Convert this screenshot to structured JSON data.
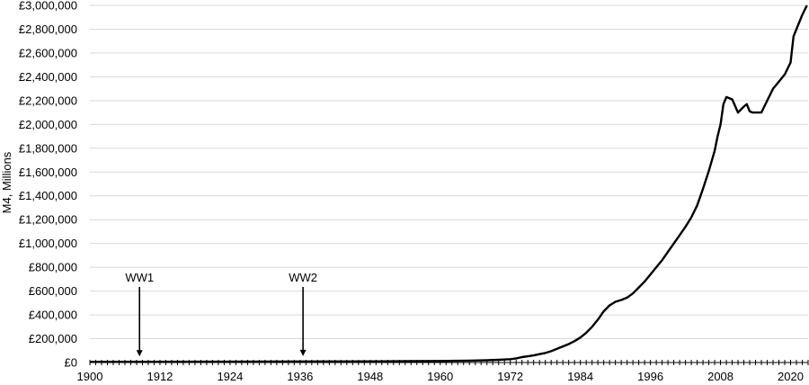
{
  "chart_data": {
    "type": "line",
    "ylabel": "M4, Millions",
    "xlim": [
      1900,
      2023
    ],
    "ylim": [
      0,
      3000000
    ],
    "x_ticks": [
      "1900",
      "1912",
      "1924",
      "1936",
      "1948",
      "1960",
      "1972",
      "1984",
      "1996",
      "2008",
      "2020"
    ],
    "y_ticks": [
      "£0",
      "£200,000",
      "£400,000",
      "£600,000",
      "£800,000",
      "£1,000,000",
      "£1,200,000",
      "£1,400,000",
      "£1,600,000",
      "£1,800,000",
      "£2,000,000",
      "£2,200,000",
      "£2,400,000",
      "£2,600,000",
      "£2,800,000",
      "£3,000,000"
    ],
    "grid": true,
    "series": [
      {
        "x": [
          1900,
          1910,
          1920,
          1930,
          1940,
          1950,
          1955,
          1960,
          1965,
          1968,
          1970,
          1972,
          1973,
          1974,
          1975,
          1976,
          1977,
          1978,
          1979,
          1980,
          1981,
          1982,
          1983,
          1984,
          1985,
          1986,
          1987,
          1988,
          1989,
          1990,
          1991,
          1992,
          1993,
          1994,
          1995,
          1996,
          1997,
          1998,
          1999,
          2000,
          2001,
          2002,
          2003,
          2004,
          2005,
          2006,
          2007,
          2007.5,
          2008,
          2008.5,
          2009,
          2010,
          2011,
          2012,
          2012.5,
          2013,
          2013.5,
          2014,
          2015,
          2016,
          2017,
          2018,
          2019,
          2020,
          2020.5,
          2021,
          2022,
          2022.8
        ],
        "y": [
          5000,
          6000,
          7000,
          7500,
          9000,
          10000,
          11000,
          13000,
          16000,
          19000,
          23000,
          28000,
          35000,
          45000,
          52000,
          60000,
          70000,
          80000,
          95000,
          115000,
          135000,
          155000,
          180000,
          210000,
          250000,
          300000,
          360000,
          430000,
          480000,
          510000,
          525000,
          545000,
          580000,
          630000,
          680000,
          740000,
          800000,
          860000,
          930000,
          1000000,
          1070000,
          1140000,
          1220000,
          1320000,
          1460000,
          1610000,
          1780000,
          1900000,
          2000000,
          2170000,
          2230000,
          2210000,
          2100000,
          2150000,
          2170000,
          2110000,
          2100000,
          2100000,
          2100000,
          2200000,
          2300000,
          2360000,
          2420000,
          2520000,
          2740000,
          2800000,
          2920000,
          3000000
        ]
      }
    ],
    "annotations": [
      {
        "label": "WW1",
        "x": 1908.5,
        "y": 6000
      },
      {
        "label": "WW2",
        "x": 1936.5,
        "y": 8500
      }
    ]
  }
}
